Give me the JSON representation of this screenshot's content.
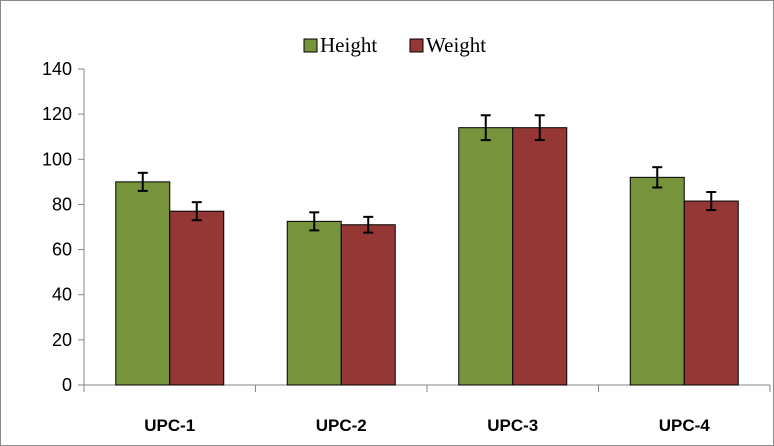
{
  "colors": {
    "height": "#77933c",
    "weight": "#953735",
    "bar_border": "#000000",
    "axis": "#868686",
    "frame": "#8a8a8a"
  },
  "chart_data": {
    "type": "bar",
    "categories": [
      "UPC-1",
      "UPC-2",
      "UPC-3",
      "UPC-4"
    ],
    "series": [
      {
        "name": "Height",
        "values": [
          90,
          72.5,
          114,
          92
        ],
        "error": [
          4,
          4,
          5.5,
          4.5
        ],
        "color": "#77933c"
      },
      {
        "name": "Weight",
        "values": [
          77,
          71,
          114,
          81.5
        ],
        "error": [
          4,
          3.5,
          5.5,
          4
        ],
        "color": "#953735"
      }
    ],
    "yticks": [
      0,
      20,
      40,
      60,
      80,
      100,
      120,
      140
    ],
    "ylim": [
      0,
      140
    ],
    "grid": false,
    "legend_position": "top-center",
    "title": "",
    "xlabel": "",
    "ylabel": ""
  }
}
